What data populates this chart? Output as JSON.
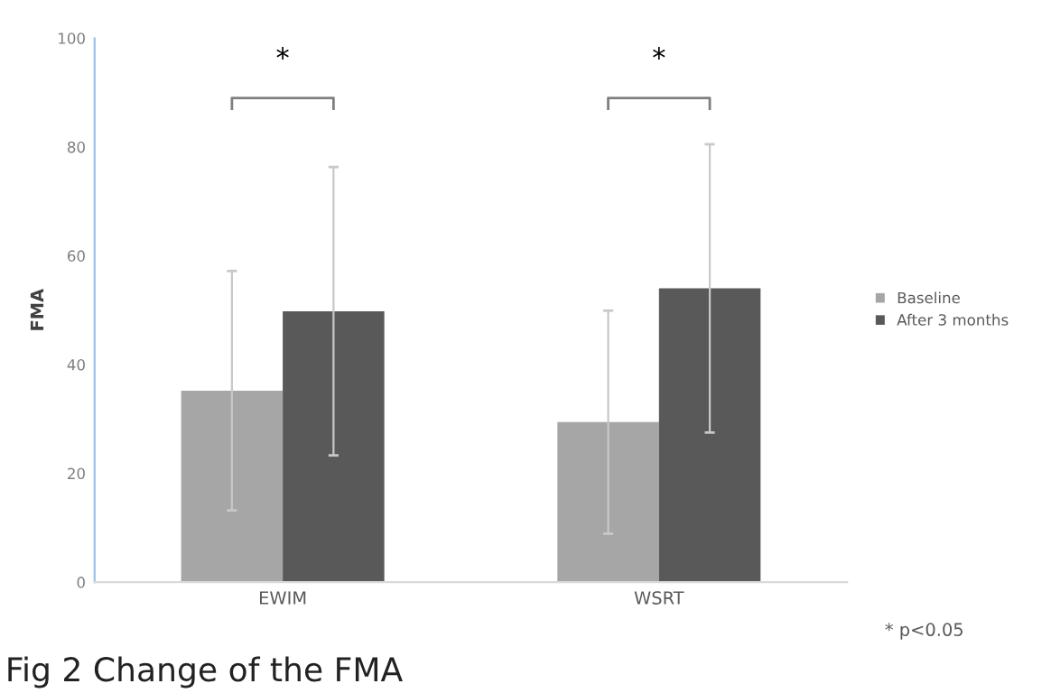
{
  "chart_data": {
    "type": "bar",
    "title": "Fig 2 Change of the FMA",
    "ylabel": "FMA",
    "categories": [
      "EWIM",
      "WSRT"
    ],
    "series": [
      {
        "name": "Baseline",
        "color": "#a6a6a6",
        "values": [
          35.2,
          29.4
        ],
        "errors": [
          22,
          20.5
        ]
      },
      {
        "name": "After 3 months",
        "color": "#595959",
        "values": [
          49.8,
          54
        ],
        "errors": [
          26.5,
          26.5
        ]
      }
    ],
    "ylim": [
      0,
      100
    ],
    "yticks": [
      0,
      20,
      40,
      60,
      80,
      100
    ],
    "grid": false,
    "legend": "right",
    "annotations": [
      "*",
      "*",
      "* p<0.05"
    ]
  }
}
